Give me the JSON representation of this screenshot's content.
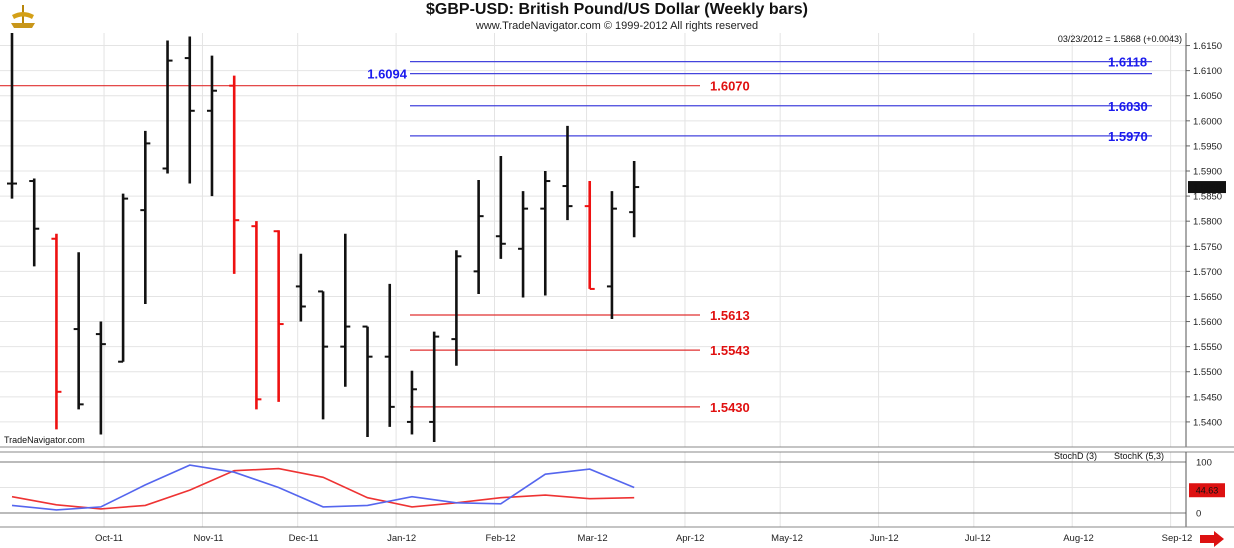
{
  "header": {
    "title": "$GBP-USD:  British Pound/US Dollar  (Weekly bars)",
    "copyright": "www.TradeNavigator.com © 1999-2012 All rights reserved"
  },
  "info_line": "03/23/2012 = 1.5868 (+0.0043)",
  "watermark": "TradeNavigator.com",
  "last_price_label": "1.5868",
  "stoch_value_label": "44.63",
  "stoch_legend": {
    "d": "StochD (3)",
    "k": "StochK (5,3)"
  },
  "colors": {
    "up_bar": "#111111",
    "down_bar": "#ee1111",
    "support": "#e03030",
    "resistance": "#4444dd",
    "stoch_d": "#ee3333",
    "stoch_k": "#5566ee",
    "grid": "#e4e4e4",
    "arrow": "#dd1111"
  },
  "chart_data": [
    {
      "type": "ohlc",
      "title": "$GBP-USD:  British Pound/US Dollar  (Weekly bars)",
      "ylim": [
        1.535,
        1.6175
      ],
      "y_ticks": [
        "1.5400",
        "1.5450",
        "1.5500",
        "1.5550",
        "1.5600",
        "1.5650",
        "1.5700",
        "1.5750",
        "1.5800",
        "1.5850",
        "1.5900",
        "1.5950",
        "1.6000",
        "1.6050",
        "1.6100",
        "1.6150"
      ],
      "x_ticks": [
        "Oct-11",
        "Nov-11",
        "Dec-11",
        "Jan-12",
        "Feb-12",
        "Mar-12",
        "Apr-12",
        "May-12",
        "Jun-12",
        "Jul-12",
        "Aug-12",
        "Sep-12"
      ],
      "bars": [
        {
          "date": "2011-09-02",
          "open": 1.5875,
          "high": 1.6175,
          "low": 1.5845,
          "close": 1.5875
        },
        {
          "date": "2011-09-09",
          "open": 1.588,
          "high": 1.5885,
          "low": 1.571,
          "close": 1.5785
        },
        {
          "date": "2011-09-16",
          "open": 1.5765,
          "high": 1.5775,
          "low": 1.5385,
          "close": 1.546
        },
        {
          "date": "2011-09-23",
          "open": 1.5585,
          "high": 1.5738,
          "low": 1.5425,
          "close": 1.5435
        },
        {
          "date": "2011-09-30",
          "open": 1.5575,
          "high": 1.56,
          "low": 1.5375,
          "close": 1.5555
        },
        {
          "date": "2011-10-07",
          "open": 1.552,
          "high": 1.5855,
          "low": 1.552,
          "close": 1.5845
        },
        {
          "date": "2011-10-14",
          "open": 1.5822,
          "high": 1.598,
          "low": 1.5635,
          "close": 1.5955
        },
        {
          "date": "2011-10-21",
          "open": 1.5905,
          "high": 1.616,
          "low": 1.5895,
          "close": 1.612
        },
        {
          "date": "2011-10-28",
          "open": 1.6125,
          "high": 1.6168,
          "low": 1.5875,
          "close": 1.602
        },
        {
          "date": "2011-11-04",
          "open": 1.602,
          "high": 1.613,
          "low": 1.585,
          "close": 1.606
        },
        {
          "date": "2011-11-11",
          "open": 1.607,
          "high": 1.609,
          "low": 1.5695,
          "close": 1.5802
        },
        {
          "date": "2011-11-18",
          "open": 1.579,
          "high": 1.58,
          "low": 1.5425,
          "close": 1.5445
        },
        {
          "date": "2011-11-25",
          "open": 1.578,
          "high": 1.5782,
          "low": 1.544,
          "close": 1.5595
        },
        {
          "date": "2011-12-02",
          "open": 1.567,
          "high": 1.5735,
          "low": 1.56,
          "close": 1.563
        },
        {
          "date": "2011-12-09",
          "open": 1.566,
          "high": 1.566,
          "low": 1.5405,
          "close": 1.555
        },
        {
          "date": "2011-12-16",
          "open": 1.555,
          "high": 1.5775,
          "low": 1.547,
          "close": 1.559
        },
        {
          "date": "2011-12-23",
          "open": 1.559,
          "high": 1.559,
          "low": 1.537,
          "close": 1.553
        },
        {
          "date": "2011-12-30",
          "open": 1.553,
          "high": 1.5675,
          "low": 1.539,
          "close": 1.543
        },
        {
          "date": "2012-01-06",
          "open": 1.54,
          "high": 1.5502,
          "low": 1.5375,
          "close": 1.5465
        },
        {
          "date": "2012-01-13",
          "open": 1.54,
          "high": 1.558,
          "low": 1.536,
          "close": 1.557
        },
        {
          "date": "2012-01-20",
          "open": 1.5565,
          "high": 1.5742,
          "low": 1.5512,
          "close": 1.573
        },
        {
          "date": "2012-01-27",
          "open": 1.57,
          "high": 1.5882,
          "low": 1.5655,
          "close": 1.581
        },
        {
          "date": "2012-02-03",
          "open": 1.577,
          "high": 1.593,
          "low": 1.5725,
          "close": 1.5755
        },
        {
          "date": "2012-02-10",
          "open": 1.5745,
          "high": 1.586,
          "low": 1.5648,
          "close": 1.5825
        },
        {
          "date": "2012-02-17",
          "open": 1.5825,
          "high": 1.59,
          "low": 1.5652,
          "close": 1.588
        },
        {
          "date": "2012-02-24",
          "open": 1.587,
          "high": 1.599,
          "low": 1.5802,
          "close": 1.583
        },
        {
          "date": "2012-03-02",
          "open": 1.583,
          "high": 1.588,
          "low": 1.5665,
          "close": 1.5665
        },
        {
          "date": "2012-03-09",
          "open": 1.567,
          "high": 1.586,
          "low": 1.5605,
          "close": 1.5825
        },
        {
          "date": "2012-03-16",
          "open": 1.5818,
          "high": 1.592,
          "low": 1.5768,
          "close": 1.5868
        }
      ],
      "levels": [
        {
          "value": 1.6118,
          "label": "1.6118",
          "side": "resistance"
        },
        {
          "value": 1.6094,
          "label": "1.6094",
          "side": "resistance"
        },
        {
          "value": 1.607,
          "label": "1.6070",
          "side": "support"
        },
        {
          "value": 1.603,
          "label": "1.6030",
          "side": "resistance"
        },
        {
          "value": 1.597,
          "label": "1.5970",
          "side": "resistance"
        },
        {
          "value": 1.5613,
          "label": "1.5613",
          "side": "support"
        },
        {
          "value": 1.5543,
          "label": "1.5543",
          "side": "support"
        },
        {
          "value": 1.543,
          "label": "1.5430",
          "side": "support"
        }
      ]
    },
    {
      "type": "line",
      "ylim": [
        0,
        100
      ],
      "y_ticks": [
        "0",
        "50",
        "100"
      ],
      "series": [
        {
          "name": "StochD (3)",
          "x": [
            0,
            2,
            4,
            6,
            8,
            10,
            12,
            14,
            16,
            18,
            20,
            22,
            24,
            26,
            28
          ],
          "values": [
            32,
            16,
            8,
            15,
            45,
            83,
            87,
            70,
            30,
            12,
            20,
            30,
            35,
            28,
            30
          ]
        },
        {
          "name": "StochK (5,3)",
          "x": [
            0,
            2,
            4,
            6,
            8,
            10,
            12,
            14,
            16,
            18,
            20,
            22,
            24,
            26,
            28
          ],
          "values": [
            15,
            6,
            12,
            55,
            94,
            80,
            50,
            12,
            15,
            32,
            20,
            18,
            76,
            86,
            50
          ]
        }
      ]
    }
  ]
}
